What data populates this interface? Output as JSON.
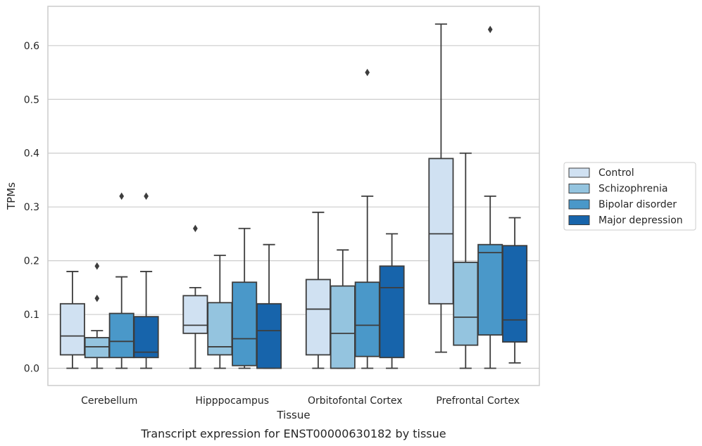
{
  "chart_data": {
    "type": "boxplot",
    "title": "",
    "xlabel": "Tissue",
    "ylabel": "TPMs",
    "caption": "Transcript expression for ENST00000630182 by tissue",
    "ylim": [
      -0.032,
      0.673
    ],
    "yticks": [
      "0.0",
      "0.1",
      "0.2",
      "0.3",
      "0.4",
      "0.5",
      "0.6"
    ],
    "grid": "horizontal",
    "legend_position": "outside-right",
    "categories": [
      "Cerebellum",
      "Hipppocampus",
      "Orbitofontal Cortex",
      "Prefrontal Cortex"
    ],
    "series": [
      {
        "name": "Control",
        "color": "#d0e1f2",
        "boxes": [
          {
            "whislo": 0.0,
            "q1": 0.025,
            "med": 0.06,
            "q3": 0.12,
            "whishi": 0.18,
            "fliers": []
          },
          {
            "whislo": 0.0,
            "q1": 0.065,
            "med": 0.08,
            "q3": 0.135,
            "whishi": 0.15,
            "fliers": [
              0.26
            ]
          },
          {
            "whislo": 0.0,
            "q1": 0.025,
            "med": 0.11,
            "q3": 0.165,
            "whishi": 0.29,
            "fliers": []
          },
          {
            "whislo": 0.03,
            "q1": 0.12,
            "med": 0.25,
            "q3": 0.39,
            "whishi": 0.64,
            "fliers": []
          }
        ]
      },
      {
        "name": "Schizophrenia",
        "color": "#94c4df",
        "boxes": [
          {
            "whislo": 0.0,
            "q1": 0.02,
            "med": 0.04,
            "q3": 0.057,
            "whishi": 0.07,
            "fliers": [
              0.13,
              0.19
            ]
          },
          {
            "whislo": 0.0,
            "q1": 0.025,
            "med": 0.04,
            "q3": 0.122,
            "whishi": 0.21,
            "fliers": []
          },
          {
            "whislo": 0.0,
            "q1": 0.0,
            "med": 0.065,
            "q3": 0.153,
            "whishi": 0.22,
            "fliers": []
          },
          {
            "whislo": 0.0,
            "q1": 0.043,
            "med": 0.095,
            "q3": 0.197,
            "whishi": 0.4,
            "fliers": []
          }
        ]
      },
      {
        "name": "Bipolar disorder",
        "color": "#4a98c9",
        "boxes": [
          {
            "whislo": 0.0,
            "q1": 0.02,
            "med": 0.05,
            "q3": 0.102,
            "whishi": 0.17,
            "fliers": [
              0.32
            ]
          },
          {
            "whislo": 0.0,
            "q1": 0.005,
            "med": 0.055,
            "q3": 0.16,
            "whishi": 0.26,
            "fliers": []
          },
          {
            "whislo": 0.0,
            "q1": 0.022,
            "med": 0.08,
            "q3": 0.16,
            "whishi": 0.32,
            "fliers": [
              0.55
            ]
          },
          {
            "whislo": 0.0,
            "q1": 0.062,
            "med": 0.215,
            "q3": 0.23,
            "whishi": 0.32,
            "fliers": [
              0.63
            ]
          }
        ]
      },
      {
        "name": "Major depression",
        "color": "#1764ab",
        "boxes": [
          {
            "whislo": 0.0,
            "q1": 0.02,
            "med": 0.03,
            "q3": 0.096,
            "whishi": 0.18,
            "fliers": [
              0.32
            ]
          },
          {
            "whislo": 0.0,
            "q1": 0.0,
            "med": 0.07,
            "q3": 0.12,
            "whishi": 0.23,
            "fliers": []
          },
          {
            "whislo": 0.0,
            "q1": 0.02,
            "med": 0.15,
            "q3": 0.19,
            "whishi": 0.25,
            "fliers": []
          },
          {
            "whislo": 0.01,
            "q1": 0.049,
            "med": 0.09,
            "q3": 0.228,
            "whishi": 0.28,
            "fliers": []
          }
        ]
      }
    ]
  }
}
